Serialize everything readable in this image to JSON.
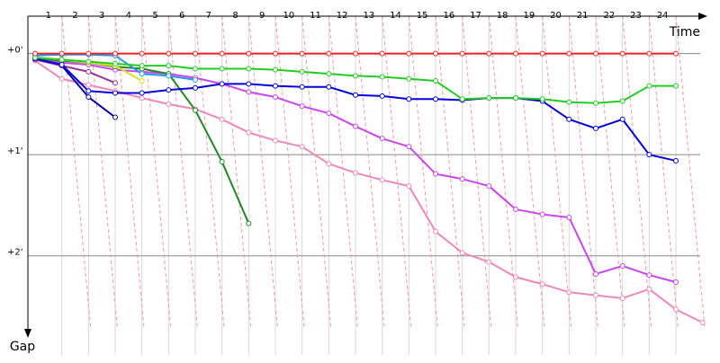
{
  "chart_data": {
    "type": "line",
    "x_label": "Time",
    "y_label": "Gap",
    "xlim": [
      -0.27,
      25.18
    ],
    "ylim": [
      -0.37,
      2.98
    ],
    "xticks": [
      1,
      2,
      3,
      4,
      5,
      6,
      7,
      8,
      9,
      10,
      11,
      12,
      13,
      14,
      15,
      16,
      17,
      18,
      19,
      20,
      21,
      22,
      23,
      24
    ],
    "yticks": [
      {
        "value": 0,
        "label": "+0'"
      },
      {
        "value": 1,
        "label": "+1'"
      },
      {
        "value": 2,
        "label": "+2'"
      }
    ],
    "inverted_y": true,
    "grid": true,
    "series": [
      {
        "color": "#ee88bb",
        "values": [
          0.07,
          0.25,
          0.31,
          0.37,
          0.44,
          0.5,
          0.55,
          0.65,
          0.78,
          0.86,
          0.92,
          1.09,
          1.18,
          1.25,
          1.31,
          1.76,
          1.97,
          2.06,
          2.21,
          2.28,
          2.36,
          2.39,
          2.42,
          2.33,
          2.53,
          2.66
        ]
      },
      {
        "color": "#cc44ee",
        "values": [
          0.05,
          0.09,
          0.11,
          0.16,
          0.18,
          0.2,
          0.24,
          0.3,
          0.38,
          0.43,
          0.52,
          0.59,
          0.72,
          0.84,
          0.92,
          1.19,
          1.24,
          1.31,
          1.54,
          1.59,
          1.62,
          2.18,
          2.1,
          2.19,
          2.26
        ]
      },
      {
        "color": "#228822",
        "values": [
          0.05,
          0.07,
          0.09,
          0.13,
          0.15,
          0.2,
          0.56,
          1.07,
          1.68
        ]
      },
      {
        "color": "#0000aa",
        "values": [
          0.05,
          0.12,
          0.43,
          0.63
        ]
      },
      {
        "color": "#993399",
        "values": [
          0.06,
          0.12,
          0.18,
          0.29
        ]
      },
      {
        "color": "#dddd22",
        "values": [
          0.04,
          0.06,
          0.09,
          0.12,
          0.27
        ]
      },
      {
        "color": "#2299ee",
        "values": [
          0.02,
          0.01,
          0.01,
          0.02,
          0.2,
          0.22,
          0.26
        ]
      },
      {
        "color": "#0000dd",
        "values": [
          0.05,
          0.11,
          0.37,
          0.39,
          0.39,
          0.36,
          0.34,
          0.3,
          0.3,
          0.32,
          0.33,
          0.33,
          0.41,
          0.42,
          0.45,
          0.45,
          0.46,
          0.44,
          0.44,
          0.47,
          0.65,
          0.74,
          0.65,
          1.0,
          1.06
        ]
      },
      {
        "color": "#22cc22",
        "values": [
          0.04,
          0.06,
          0.08,
          0.1,
          0.12,
          0.12,
          0.15,
          0.15,
          0.15,
          0.16,
          0.18,
          0.2,
          0.22,
          0.23,
          0.25,
          0.27,
          0.45,
          0.44,
          0.44,
          0.45,
          0.48,
          0.49,
          0.47,
          0.32,
          0.32
        ]
      },
      {
        "color": "#ee2222",
        "values": [
          0,
          0,
          0,
          0,
          0,
          0,
          0,
          0,
          0,
          0,
          0,
          0,
          0,
          0,
          0,
          0,
          0,
          0,
          0,
          0,
          0,
          0,
          0,
          0,
          0
        ]
      }
    ]
  }
}
